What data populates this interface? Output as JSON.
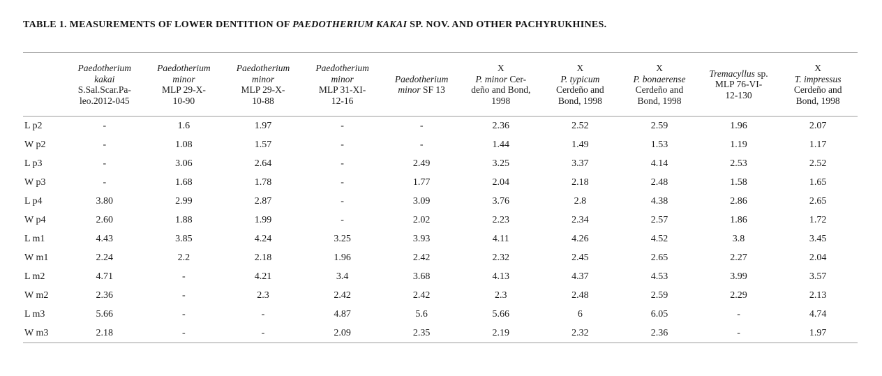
{
  "title": {
    "prefix": "TABLE 1. MEASUREMENTS OF LOWER DENTITION OF ",
    "species_italic": "PAEDOTHERIUM KAKAI",
    "suffix": " SP. NOV. AND OTHER PACHYRUKHINES."
  },
  "table": {
    "corner_label": "",
    "columns": [
      {
        "id": "paedotherium-kakai",
        "lines": [
          [
            {
              "t": "Paedotherium",
              "i": true
            }
          ],
          [
            {
              "t": "kakai",
              "i": true
            }
          ],
          [
            {
              "t": "S.Sal.Scar.Pa-"
            }
          ],
          [
            {
              "t": "leo.2012-045"
            }
          ]
        ]
      },
      {
        "id": "paedotherium-minor-mlp-29-x-10-90",
        "lines": [
          [
            {
              "t": "Paedotherium",
              "i": true
            }
          ],
          [
            {
              "t": "minor",
              "i": true
            }
          ],
          [
            {
              "t": "MLP 29-X-"
            }
          ],
          [
            {
              "t": "10-90"
            }
          ]
        ]
      },
      {
        "id": "paedotherium-minor-mlp-29-x-10-88",
        "lines": [
          [
            {
              "t": "Paedotherium",
              "i": true
            }
          ],
          [
            {
              "t": "minor",
              "i": true
            }
          ],
          [
            {
              "t": "MLP 29-X-"
            }
          ],
          [
            {
              "t": "10-88"
            }
          ]
        ]
      },
      {
        "id": "paedotherium-minor-mlp-31-xi-12-16",
        "lines": [
          [
            {
              "t": "Paedotherium",
              "i": true
            }
          ],
          [
            {
              "t": "minor",
              "i": true
            }
          ],
          [
            {
              "t": "MLP 31-XI-"
            }
          ],
          [
            {
              "t": "12-16"
            }
          ]
        ]
      },
      {
        "id": "paedotherium-minor-sf-13",
        "lines": [
          [
            {
              "t": "Paedotherium",
              "i": true
            }
          ],
          [
            {
              "t": "minor",
              "i": true
            },
            {
              "t": " SF 13"
            }
          ]
        ]
      },
      {
        "id": "x-p-minor",
        "lines": [
          [
            {
              "t": "X"
            }
          ],
          [
            {
              "t": "P. minor",
              "i": true
            },
            {
              "t": " Cer-"
            }
          ],
          [
            {
              "t": "deño and Bond,"
            }
          ],
          [
            {
              "t": "1998"
            }
          ]
        ]
      },
      {
        "id": "x-p-typicum",
        "lines": [
          [
            {
              "t": "X"
            }
          ],
          [
            {
              "t": "P. typicum",
              "i": true
            }
          ],
          [
            {
              "t": "Cerdeño and"
            }
          ],
          [
            {
              "t": "Bond, 1998"
            }
          ]
        ]
      },
      {
        "id": "x-p-bonaerense",
        "lines": [
          [
            {
              "t": "X"
            }
          ],
          [
            {
              "t": "P. bonaerense",
              "i": true
            }
          ],
          [
            {
              "t": "Cerdeño and"
            }
          ],
          [
            {
              "t": "Bond, 1998"
            }
          ]
        ]
      },
      {
        "id": "tremacyllus-sp-mlp-76-vi-12-130",
        "lines": [
          [
            {
              "t": "Tremacyllus",
              "i": true
            },
            {
              "t": " sp."
            }
          ],
          [
            {
              "t": "MLP 76-VI-"
            }
          ],
          [
            {
              "t": "12-130"
            }
          ]
        ]
      },
      {
        "id": "x-t-impressus",
        "lines": [
          [
            {
              "t": "X"
            }
          ],
          [
            {
              "t": "T. impressus",
              "i": true
            }
          ],
          [
            {
              "t": "Cerdeño and"
            }
          ],
          [
            {
              "t": "Bond, 1998"
            }
          ]
        ]
      }
    ],
    "rows": [
      {
        "label": "L p2",
        "values": [
          "-",
          "1.6",
          "1.97",
          "-",
          "-",
          "2.36",
          "2.52",
          "2.59",
          "1.96",
          "2.07"
        ]
      },
      {
        "label": "W p2",
        "values": [
          "-",
          "1.08",
          "1.57",
          "-",
          "-",
          "1.44",
          "1.49",
          "1.53",
          "1.19",
          "1.17"
        ]
      },
      {
        "label": "L p3",
        "values": [
          "-",
          "3.06",
          "2.64",
          "-",
          "2.49",
          "3.25",
          "3.37",
          "4.14",
          "2.53",
          "2.52"
        ]
      },
      {
        "label": "W p3",
        "values": [
          "-",
          "1.68",
          "1.78",
          "-",
          "1.77",
          "2.04",
          "2.18",
          "2.48",
          "1.58",
          "1.65"
        ]
      },
      {
        "label": "L p4",
        "values": [
          "3.80",
          "2.99",
          "2.87",
          "-",
          "3.09",
          "3.76",
          "2.8",
          "4.38",
          "2.86",
          "2.65"
        ]
      },
      {
        "label": "W p4",
        "values": [
          "2.60",
          "1.88",
          "1.99",
          "-",
          "2.02",
          "2.23",
          "2.34",
          "2.57",
          "1.86",
          "1.72"
        ]
      },
      {
        "label": "L m1",
        "values": [
          "4.43",
          "3.85",
          "4.24",
          "3.25",
          "3.93",
          "4.11",
          "4.26",
          "4.52",
          "3.8",
          "3.45"
        ]
      },
      {
        "label": "W m1",
        "values": [
          "2.24",
          "2.2",
          "2.18",
          "1.96",
          "2.42",
          "2.32",
          "2.45",
          "2.65",
          "2.27",
          "2.04"
        ]
      },
      {
        "label": "L m2",
        "values": [
          "4.71",
          "-",
          "4.21",
          "3.4",
          "3.68",
          "4.13",
          "4.37",
          "4.53",
          "3.99",
          "3.57"
        ]
      },
      {
        "label": "W m2",
        "values": [
          "2.36",
          "-",
          "2.3",
          "2.42",
          "2.42",
          "2.3",
          "2.48",
          "2.59",
          "2.29",
          "2.13"
        ]
      },
      {
        "label": "L m3",
        "values": [
          "5.66",
          "-",
          "-",
          "4.87",
          "5.6",
          "5.66",
          "6",
          "6.05",
          "-",
          "4.74"
        ]
      },
      {
        "label": "W m3",
        "values": [
          "2.18",
          "-",
          "-",
          "2.09",
          "2.35",
          "2.19",
          "2.32",
          "2.36",
          "-",
          "1.97"
        ]
      }
    ]
  }
}
